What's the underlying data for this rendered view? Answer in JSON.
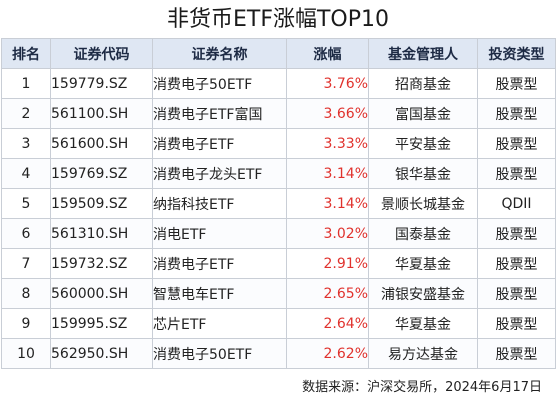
{
  "title": "非货币ETF涨幅TOP10",
  "table": {
    "headers": {
      "rank": "排名",
      "code": "证券代码",
      "name": "证券名称",
      "change": "涨幅",
      "manager": "基金管理人",
      "type": "投资类型"
    },
    "rows": [
      {
        "rank": "1",
        "code": "159779.SZ",
        "name": "消费电子50ETF",
        "change": "3.76%",
        "manager": "招商基金",
        "type": "股票型"
      },
      {
        "rank": "2",
        "code": "561100.SH",
        "name": "消费电子ETF富国",
        "change": "3.66%",
        "manager": "富国基金",
        "type": "股票型"
      },
      {
        "rank": "3",
        "code": "561600.SH",
        "name": "消费电子ETF",
        "change": "3.33%",
        "manager": "平安基金",
        "type": "股票型"
      },
      {
        "rank": "4",
        "code": "159769.SZ",
        "name": "消费电子龙头ETF",
        "change": "3.14%",
        "manager": "银华基金",
        "type": "股票型"
      },
      {
        "rank": "5",
        "code": "159509.SZ",
        "name": "纳指科技ETF",
        "change": "3.14%",
        "manager": "景顺长城基金",
        "type": "QDII"
      },
      {
        "rank": "6",
        "code": "561310.SH",
        "name": "消电ETF",
        "change": "3.02%",
        "manager": "国泰基金",
        "type": "股票型"
      },
      {
        "rank": "7",
        "code": "159732.SZ",
        "name": "消费电子ETF",
        "change": "2.91%",
        "manager": "华夏基金",
        "type": "股票型"
      },
      {
        "rank": "8",
        "code": "560000.SH",
        "name": "智慧电车ETF",
        "change": "2.65%",
        "manager": "浦银安盛基金",
        "type": "股票型"
      },
      {
        "rank": "9",
        "code": "159995.SZ",
        "name": "芯片ETF",
        "change": "2.64%",
        "manager": "华夏基金",
        "type": "股票型"
      },
      {
        "rank": "10",
        "code": "562950.SH",
        "name": "消费电子50ETF",
        "change": "2.62%",
        "manager": "易方达基金",
        "type": "股票型"
      }
    ]
  },
  "source": "数据来源：沪深交易所，2024年6月17日",
  "colors": {
    "header_bg": "#dfe7f3",
    "positive_change": "#e0322d",
    "border": "#c9ced6"
  }
}
